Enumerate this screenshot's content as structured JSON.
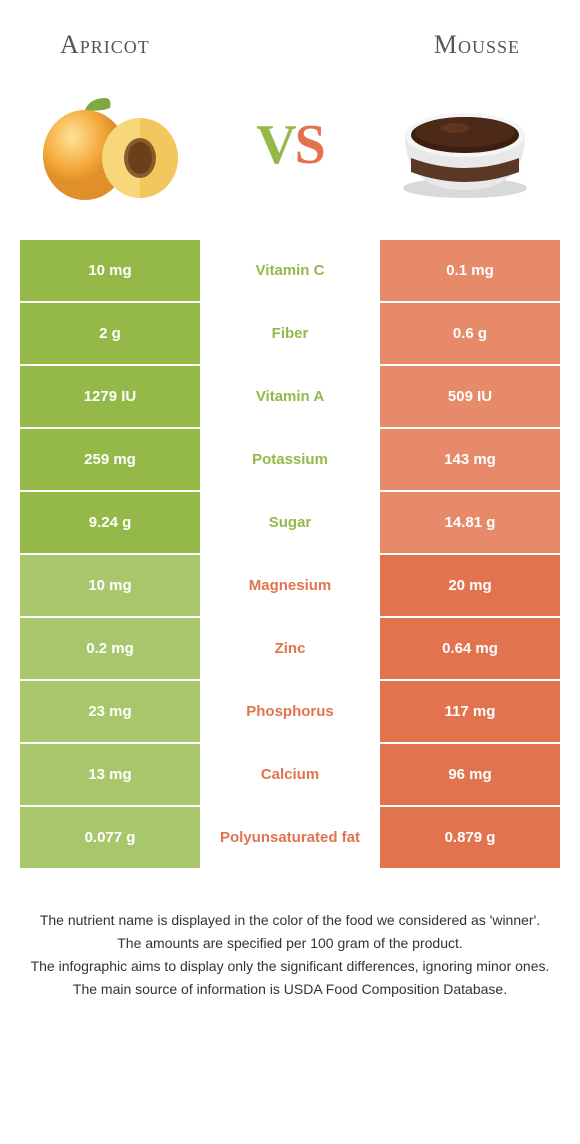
{
  "colors": {
    "green": "#94b948",
    "orange": "#e1744e",
    "green_dim": "#a8c66b",
    "orange_dim": "#e68a6a",
    "text_green": "#94b948",
    "text_orange": "#e1744e"
  },
  "header": {
    "left": "Apricot",
    "right": "Mousse"
  },
  "vs": {
    "v": "V",
    "s": "S"
  },
  "rows": [
    {
      "left": "10 mg",
      "label": "Vitamin C",
      "right": "0.1 mg",
      "winner": "left"
    },
    {
      "left": "2 g",
      "label": "Fiber",
      "right": "0.6 g",
      "winner": "left"
    },
    {
      "left": "1279 IU",
      "label": "Vitamin A",
      "right": "509 IU",
      "winner": "left"
    },
    {
      "left": "259 mg",
      "label": "Potassium",
      "right": "143 mg",
      "winner": "left"
    },
    {
      "left": "9.24 g",
      "label": "Sugar",
      "right": "14.81 g",
      "winner": "left"
    },
    {
      "left": "10 mg",
      "label": "Magnesium",
      "right": "20 mg",
      "winner": "right"
    },
    {
      "left": "0.2 mg",
      "label": "Zinc",
      "right": "0.64 mg",
      "winner": "right"
    },
    {
      "left": "23 mg",
      "label": "Phosphorus",
      "right": "117 mg",
      "winner": "right"
    },
    {
      "left": "13 mg",
      "label": "Calcium",
      "right": "96 mg",
      "winner": "right"
    },
    {
      "left": "0.077 g",
      "label": "Polyunsaturated fat",
      "right": "0.879 g",
      "winner": "right"
    }
  ],
  "footer": [
    "The nutrient name is displayed in the color of the food we considered as 'winner'.",
    "The amounts are specified per 100 gram of the product.",
    "The infographic aims to display only the significant differences, ignoring minor ones.",
    "The main source of information is USDA Food Composition Database."
  ]
}
